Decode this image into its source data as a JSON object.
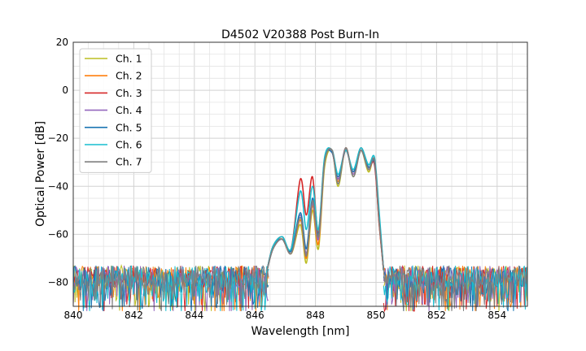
{
  "chart_data": {
    "type": "line",
    "title": "D4502 V20388 Post Burn-In",
    "xlabel": "Wavelength [nm]",
    "ylabel": "Optical Power [dB]",
    "xlim": [
      840,
      855
    ],
    "ylim": [
      -90,
      20
    ],
    "xticks": [
      840,
      842,
      844,
      846,
      848,
      850,
      852,
      854
    ],
    "yticks": [
      -80,
      -60,
      -40,
      -20,
      0,
      20
    ],
    "grid": true,
    "legend_position": "top-left",
    "noise_floor_db": -80,
    "series": [
      {
        "name": "Ch. 1",
        "color": "#bcbd22",
        "x": [
          846.4,
          846.6,
          846.9,
          847.2,
          847.5,
          847.7,
          847.9,
          848.1,
          848.3,
          848.55,
          848.75,
          849.0,
          849.25,
          849.5,
          849.75,
          849.95,
          850.1,
          850.25
        ],
        "y": [
          -75,
          -66,
          -62,
          -68,
          -56,
          -72,
          -50,
          -66,
          -32,
          -25,
          -40,
          -24,
          -36,
          -25,
          -34,
          -29,
          -52,
          -75
        ]
      },
      {
        "name": "Ch. 2",
        "color": "#ff7f0e",
        "x": [
          846.4,
          846.6,
          846.9,
          847.2,
          847.5,
          847.7,
          847.9,
          848.1,
          848.3,
          848.55,
          848.75,
          849.0,
          849.25,
          849.5,
          849.75,
          849.95,
          850.1,
          850.25
        ],
        "y": [
          -75,
          -65,
          -62,
          -68,
          -54,
          -70,
          -48,
          -64,
          -30,
          -25,
          -38,
          -24,
          -35,
          -25,
          -33,
          -30,
          -55,
          -75
        ]
      },
      {
        "name": "Ch. 3",
        "color": "#d62728",
        "x": [
          846.4,
          846.6,
          846.9,
          847.2,
          847.5,
          847.7,
          847.9,
          848.1,
          848.3,
          848.55,
          848.75,
          849.0,
          849.25,
          849.5,
          849.75,
          849.95,
          850.1,
          850.25
        ],
        "y": [
          -75,
          -65,
          -61,
          -66,
          -37,
          -52,
          -36,
          -60,
          -29,
          -26,
          -37,
          -25,
          -34,
          -24,
          -32,
          -31,
          -55,
          -75
        ]
      },
      {
        "name": "Ch. 4",
        "color": "#9467bd",
        "x": [
          846.4,
          846.6,
          846.9,
          847.2,
          847.5,
          847.7,
          847.9,
          848.1,
          848.3,
          848.55,
          848.75,
          849.0,
          849.25,
          849.5,
          849.75,
          849.95,
          850.1,
          850.25
        ],
        "y": [
          -75,
          -66,
          -62,
          -67,
          -52,
          -68,
          -47,
          -62,
          -30,
          -25,
          -37,
          -24,
          -35,
          -25,
          -33,
          -29,
          -53,
          -75
        ]
      },
      {
        "name": "Ch. 5",
        "color": "#1f77b4",
        "x": [
          846.4,
          846.6,
          846.9,
          847.2,
          847.5,
          847.7,
          847.9,
          848.1,
          848.3,
          848.55,
          848.75,
          849.0,
          849.25,
          849.5,
          849.75,
          849.95,
          850.1,
          850.25
        ],
        "y": [
          -75,
          -65,
          -62,
          -67,
          -51,
          -66,
          -45,
          -60,
          -29,
          -26,
          -36,
          -25,
          -34,
          -25,
          -32,
          -30,
          -52,
          -75
        ]
      },
      {
        "name": "Ch. 6",
        "color": "#17becf",
        "x": [
          846.4,
          846.6,
          846.9,
          847.2,
          847.5,
          847.7,
          847.9,
          848.1,
          848.3,
          848.55,
          848.75,
          849.0,
          849.25,
          849.5,
          849.75,
          849.95,
          850.1,
          850.25
        ],
        "y": [
          -75,
          -65,
          -61,
          -66,
          -42,
          -58,
          -40,
          -58,
          -28,
          -25,
          -35,
          -25,
          -33,
          -24,
          -31,
          -28,
          -50,
          -75
        ]
      },
      {
        "name": "Ch. 7",
        "color": "#7f7f7f",
        "x": [
          846.4,
          846.6,
          846.9,
          847.2,
          847.5,
          847.7,
          847.9,
          848.1,
          848.3,
          848.55,
          848.75,
          849.0,
          849.25,
          849.5,
          849.75,
          849.95,
          850.1,
          850.25
        ],
        "y": [
          -75,
          -66,
          -62,
          -68,
          -53,
          -69,
          -46,
          -61,
          -30,
          -25,
          -39,
          -24,
          -36,
          -25,
          -33,
          -29,
          -54,
          -75
        ]
      }
    ]
  }
}
